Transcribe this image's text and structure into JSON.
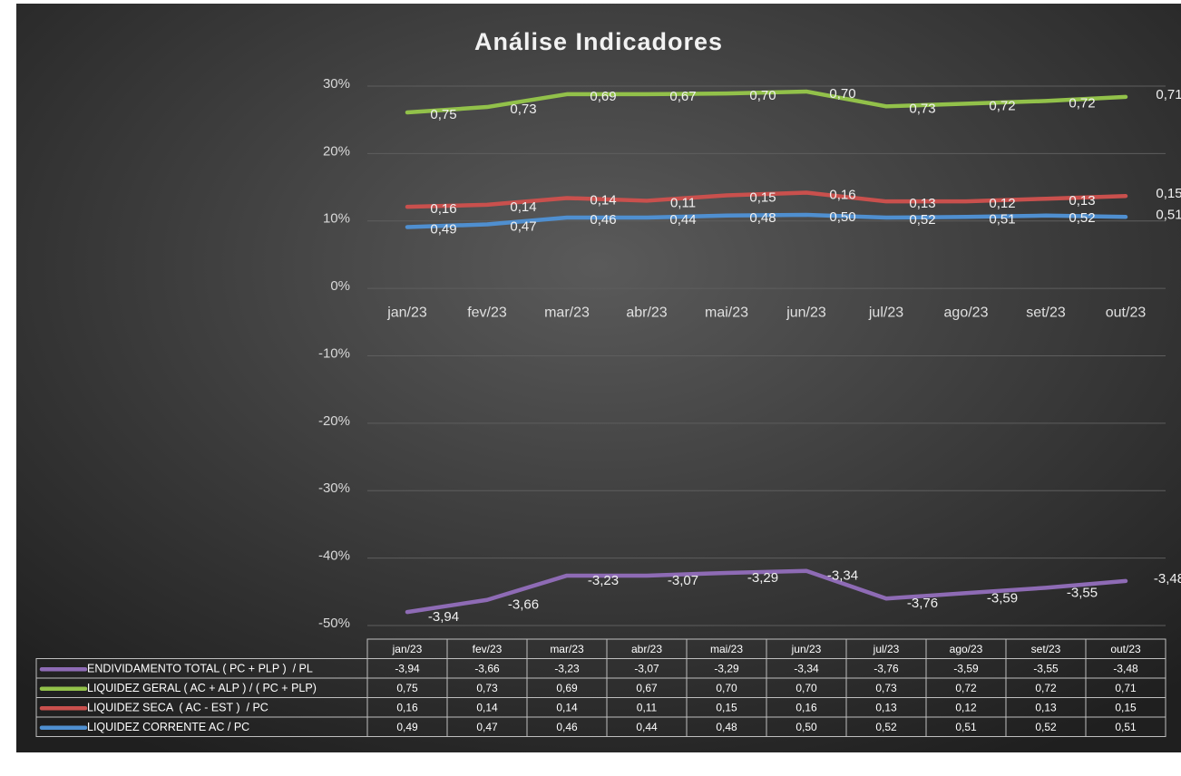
{
  "chart_data": {
    "type": "line",
    "title": "Análise Indicadores",
    "categories": [
      "jan/23",
      "fev/23",
      "mar/23",
      "abr/23",
      "mai/23",
      "jun/23",
      "jul/23",
      "ago/23",
      "set/23",
      "out/23"
    ],
    "ylim": [
      -50,
      30
    ],
    "yticks": [
      {
        "value": -50,
        "label": "-50%"
      },
      {
        "value": -40,
        "label": "-40%"
      },
      {
        "value": -30,
        "label": "-30%"
      },
      {
        "value": -20,
        "label": "-20%"
      },
      {
        "value": -10,
        "label": "-10%"
      },
      {
        "value": 0,
        "label": "0%"
      },
      {
        "value": 10,
        "label": "10%"
      },
      {
        "value": 20,
        "label": "20%"
      },
      {
        "value": 30,
        "label": "30%"
      }
    ],
    "grid": true,
    "series": [
      {
        "name": "ENDIVIDAMENTO TOTAL ( PC + PLP )  / PL",
        "color": "#8e6bb5",
        "values": [
          -48.0,
          -46.2,
          -42.6,
          -42.6,
          -42.2,
          -41.9,
          -46.0,
          -45.2,
          -44.4,
          -43.4
        ]
      },
      {
        "name": "LIQUIDEZ GERAL ( AC + ALP ) / ( PC + PLP)",
        "color": "#92c14a",
        "values": [
          26.1,
          26.9,
          28.8,
          28.8,
          28.9,
          29.2,
          27.0,
          27.4,
          27.8,
          28.4
        ]
      },
      {
        "name": "LIQUIDEZ SECA  ( AC - EST )  / PC",
        "color": "#c9504d",
        "values": [
          12.1,
          12.4,
          13.4,
          13.0,
          13.8,
          14.2,
          12.9,
          12.9,
          13.3,
          13.7
        ]
      },
      {
        "name": "LIQUIDEZ CORRENTE AC / PC",
        "color": "#4f8fd0",
        "values": [
          9.1,
          9.5,
          10.5,
          10.5,
          10.8,
          10.9,
          10.5,
          10.6,
          10.8,
          10.6
        ]
      }
    ]
  },
  "table": {
    "rows": [
      [
        "-3,94",
        "-3,66",
        "-3,23",
        "-3,07",
        "-3,29",
        "-3,34",
        "-3,76",
        "-3,59",
        "-3,55",
        "-3,48"
      ],
      [
        "0,75",
        "0,73",
        "0,69",
        "0,67",
        "0,70",
        "0,70",
        "0,73",
        "0,72",
        "0,72",
        "0,71"
      ],
      [
        "0,16",
        "0,14",
        "0,14",
        "0,11",
        "0,15",
        "0,16",
        "0,13",
        "0,12",
        "0,13",
        "0,15"
      ],
      [
        "0,49",
        "0,47",
        "0,46",
        "0,44",
        "0,48",
        "0,50",
        "0,52",
        "0,51",
        "0,52",
        "0,51"
      ]
    ]
  }
}
